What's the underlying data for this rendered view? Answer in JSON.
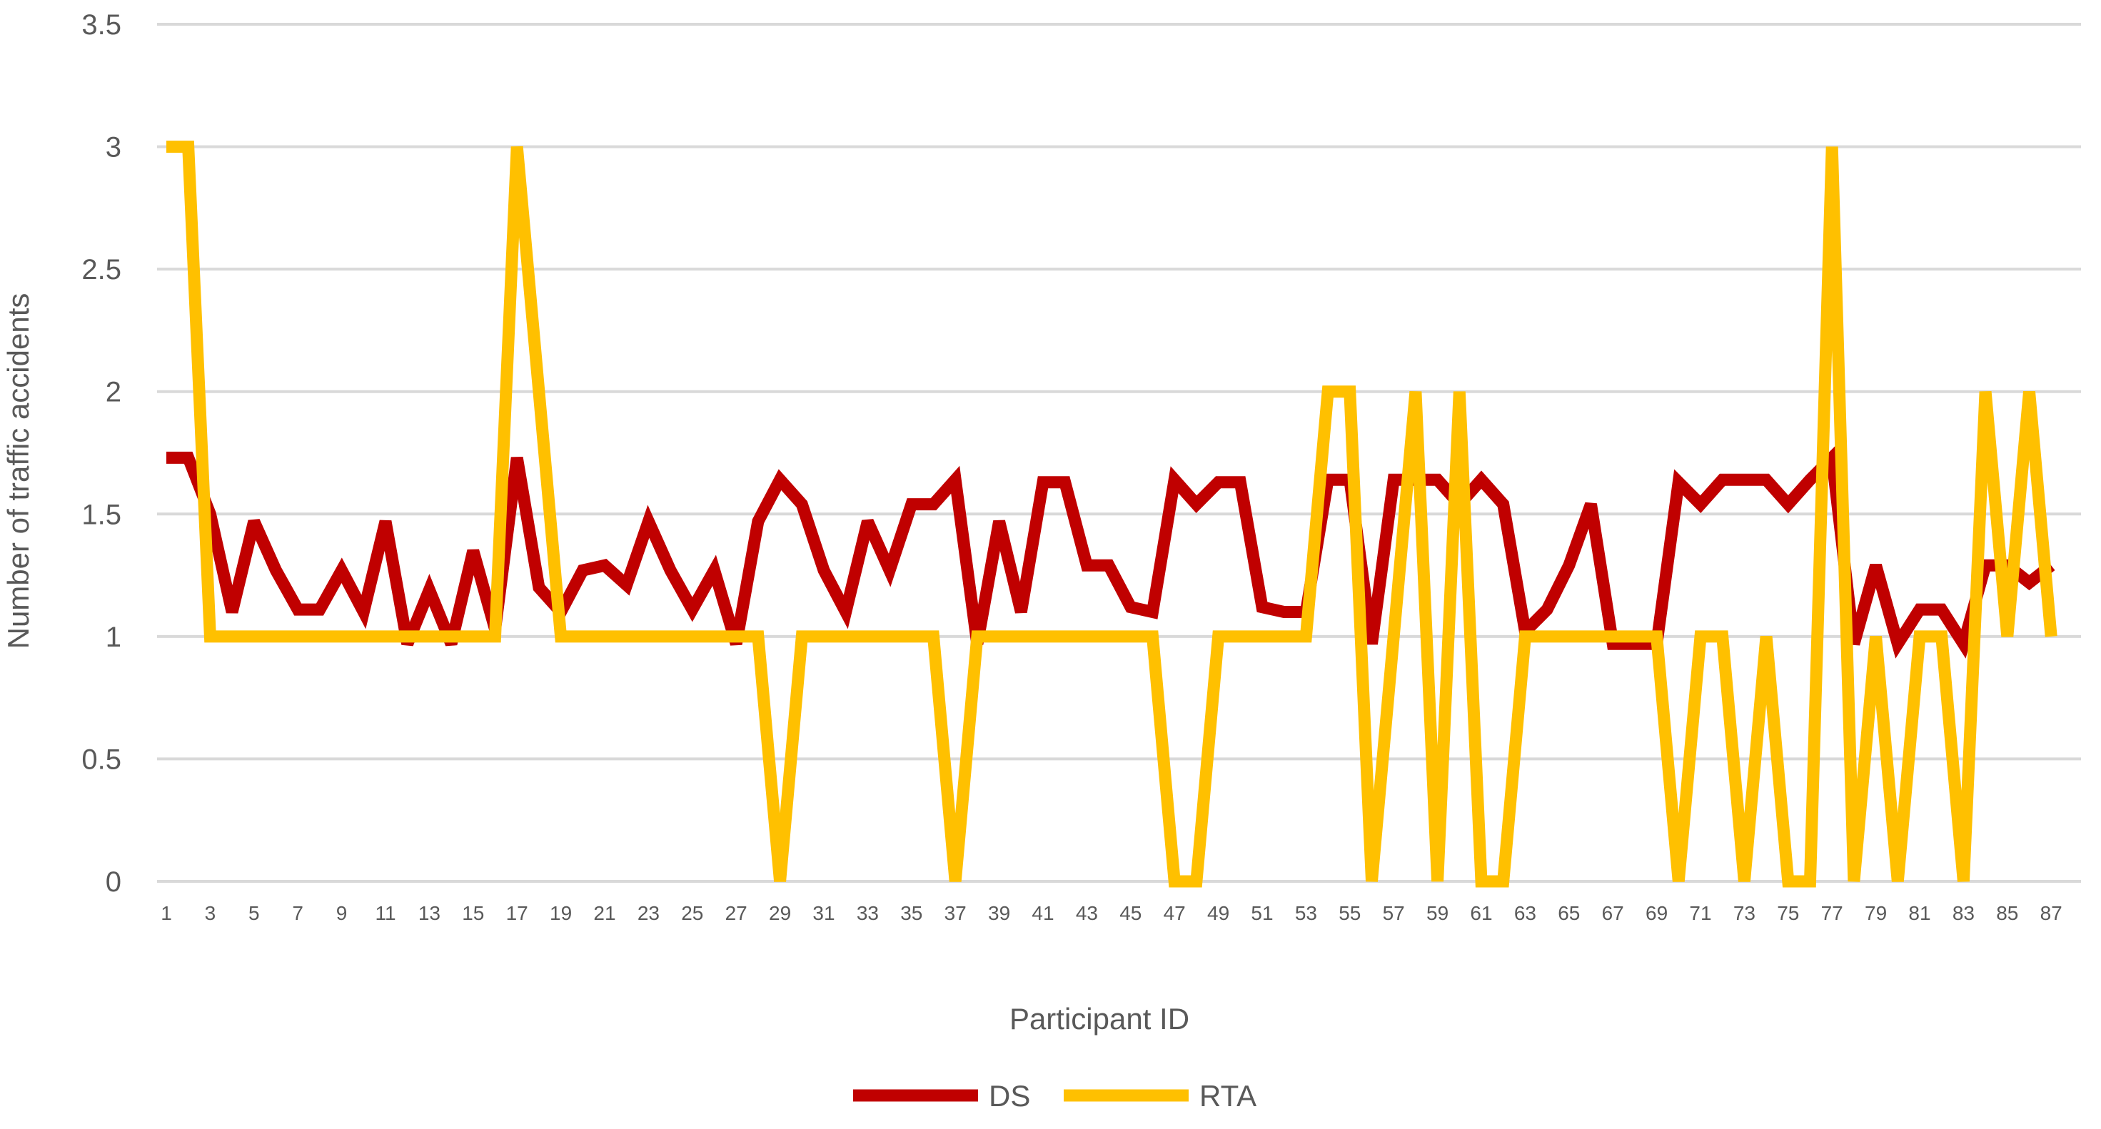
{
  "chart_data": {
    "type": "line",
    "title": "",
    "xlabel": "Participant ID",
    "ylabel": "Number of traffic accidents",
    "ylim": [
      0,
      3.5
    ],
    "yticks": [
      "0",
      "0.5",
      "1",
      "1.5",
      "2",
      "2.5",
      "3",
      "3.5"
    ],
    "grid": true,
    "legend_position": "bottom",
    "x": [
      1,
      2,
      3,
      4,
      5,
      6,
      7,
      8,
      9,
      10,
      11,
      12,
      13,
      14,
      15,
      16,
      17,
      18,
      19,
      20,
      21,
      22,
      23,
      24,
      25,
      26,
      27,
      28,
      29,
      30,
      31,
      32,
      33,
      34,
      35,
      36,
      37,
      38,
      39,
      40,
      41,
      42,
      43,
      44,
      45,
      46,
      47,
      48,
      49,
      50,
      51,
      52,
      53,
      54,
      55,
      56,
      57,
      58,
      59,
      60,
      61,
      62,
      63,
      64,
      65,
      66,
      67,
      68,
      69,
      70,
      71,
      72,
      73,
      74,
      75,
      76,
      77,
      78,
      79,
      80,
      81,
      82,
      83,
      84,
      85,
      86,
      87
    ],
    "x_tick_labels": [
      "1",
      "",
      "3",
      "",
      "5",
      "",
      "7",
      "",
      "9",
      "",
      "11",
      "",
      "13",
      "",
      "15",
      "",
      "17",
      "",
      "19",
      "",
      "21",
      "",
      "23",
      "",
      "25",
      "",
      "27",
      "",
      "29",
      "",
      "31",
      "",
      "33",
      "",
      "35",
      "",
      "37",
      "",
      "39",
      "",
      "41",
      "",
      "43",
      "",
      "45",
      "",
      "47",
      "",
      "49",
      "",
      "51",
      "",
      "53",
      "",
      "55",
      "",
      "57",
      "",
      "59",
      "",
      "61",
      "",
      "63",
      "",
      "65",
      "",
      "67",
      "",
      "69",
      "",
      "71",
      "",
      "73",
      "",
      "75",
      "",
      "77",
      "",
      "79",
      "",
      "81",
      "",
      "83",
      "",
      "85",
      "",
      "87"
    ],
    "series": [
      {
        "name": "DS",
        "color": "#C00000",
        "values": [
          1.73,
          1.73,
          1.5,
          1.1,
          1.47,
          1.27,
          1.11,
          1.11,
          1.27,
          1.1,
          1.47,
          0.97,
          1.19,
          0.97,
          1.35,
          1.03,
          1.73,
          1.2,
          1.1,
          1.27,
          1.29,
          1.21,
          1.47,
          1.27,
          1.11,
          1.27,
          0.97,
          1.47,
          1.64,
          1.54,
          1.27,
          1.1,
          1.47,
          1.27,
          1.54,
          1.54,
          1.64,
          0.97,
          1.47,
          1.1,
          1.63,
          1.63,
          1.29,
          1.29,
          1.12,
          1.1,
          1.64,
          1.54,
          1.63,
          1.63,
          1.12,
          1.1,
          1.1,
          1.64,
          1.64,
          0.97,
          1.64,
          1.64,
          1.64,
          1.54,
          1.64,
          1.54,
          1.02,
          1.11,
          1.29,
          1.54,
          0.97,
          0.97,
          0.97,
          1.63,
          1.54,
          1.64,
          1.64,
          1.64,
          1.54,
          1.64,
          1.73,
          0.97,
          1.29,
          0.97,
          1.11,
          1.11,
          0.97,
          1.29,
          1.29,
          1.22,
          1.29
        ]
      },
      {
        "name": "RTA",
        "color": "#FFC000",
        "values": [
          3,
          3,
          1,
          1,
          1,
          1,
          1,
          1,
          1,
          1,
          1,
          1,
          1,
          1,
          1,
          1,
          3,
          2,
          1,
          1,
          1,
          1,
          1,
          1,
          1,
          1,
          1,
          1,
          0,
          1,
          1,
          1,
          1,
          1,
          1,
          1,
          0,
          1,
          1,
          1,
          1,
          1,
          1,
          1,
          1,
          1,
          0,
          0,
          1,
          1,
          1,
          1,
          1,
          2,
          2,
          0,
          1,
          2,
          0,
          2,
          0,
          0,
          1,
          1,
          1,
          1,
          1,
          1,
          1,
          0,
          1,
          1,
          0,
          1,
          0,
          0,
          3,
          0,
          1,
          0,
          1,
          1,
          0,
          2,
          1,
          2,
          1
        ]
      }
    ]
  }
}
